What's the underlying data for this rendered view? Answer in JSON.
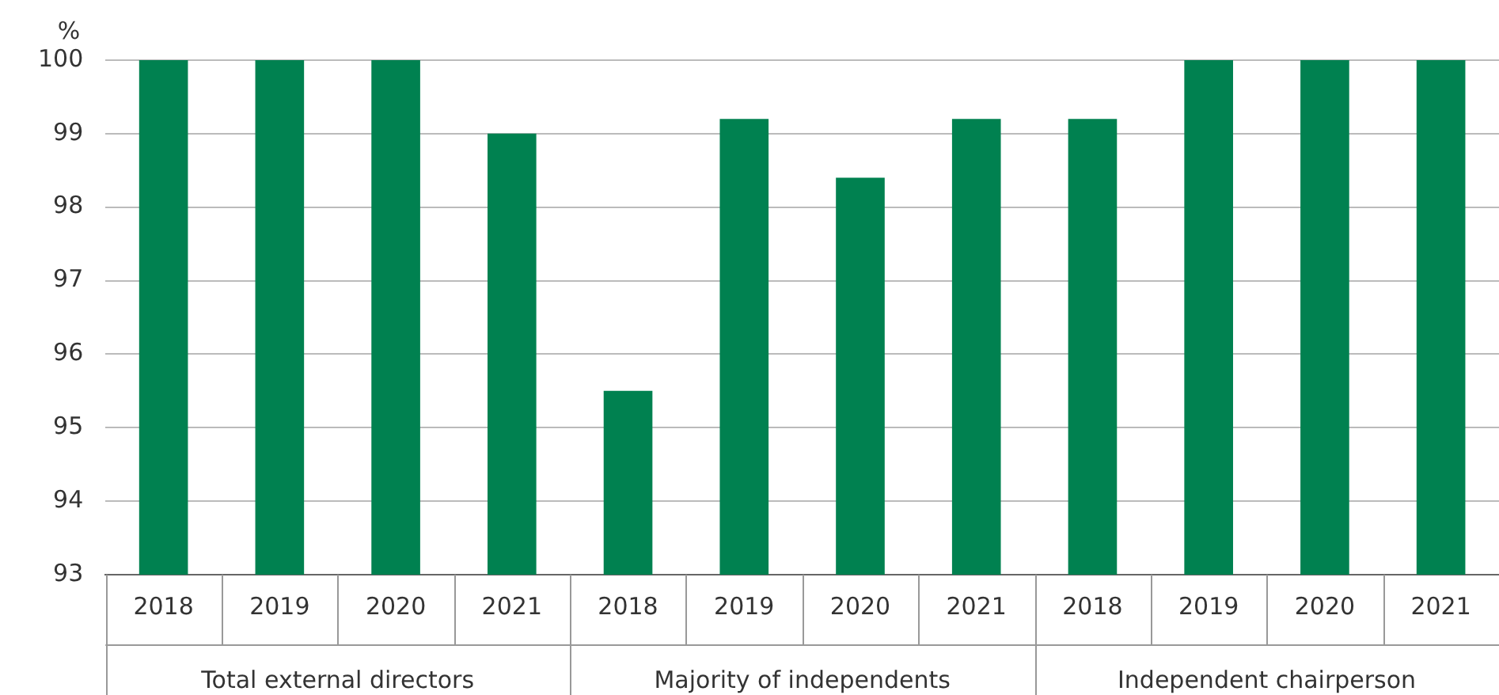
{
  "chart_data": {
    "type": "bar",
    "ylabel": "%",
    "categories": [
      "2018",
      "2019",
      "2020",
      "2021",
      "2018",
      "2019",
      "2020",
      "2021",
      "2018",
      "2019",
      "2020",
      "2021"
    ],
    "values": [
      100,
      100,
      100,
      99,
      95.5,
      99.2,
      98.4,
      99.2,
      99.2,
      100,
      100,
      100
    ],
    "color": "#008150",
    "ylim": [
      93,
      100
    ],
    "yticks": [
      93,
      94,
      95,
      96,
      97,
      98,
      99,
      100
    ],
    "grid": "y",
    "annotations": [
      "Total external directors",
      "Majority of independents",
      "Independent chairperson"
    ]
  }
}
